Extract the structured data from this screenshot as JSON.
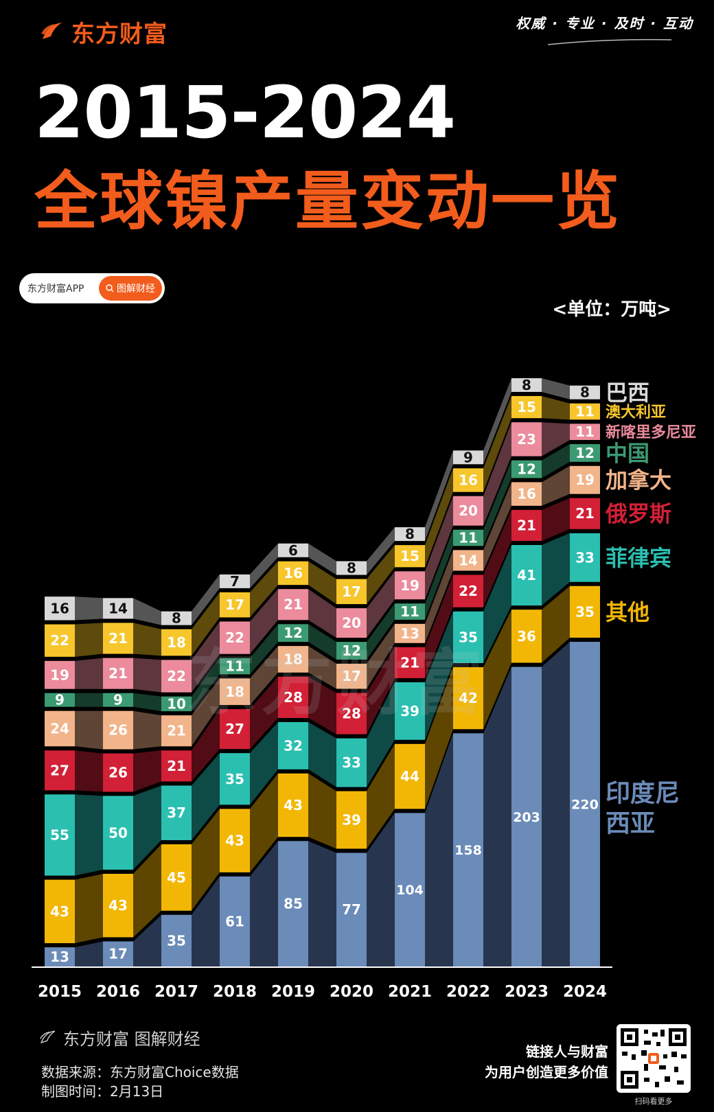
{
  "header": {
    "brand": "东方财富",
    "slogan": "权威 · 专业 · 及时 · 互动",
    "title_years": "2015-2024",
    "title_main": "全球镍产量变动一览"
  },
  "pill": {
    "left": "东方财富APP",
    "right": "图解财经"
  },
  "watermark": "东方财富",
  "footer": {
    "brand": "东方财富 图解财经",
    "source": "数据来源：东方财富Choice数据",
    "date": "制图时间：2月13日",
    "right_line1": "链接人与财富",
    "right_line2": "为用户创造更多价值",
    "qr_caption": "扫码看更多"
  },
  "chart_data": {
    "type": "bar",
    "stacked": true,
    "unit": "<单位：万吨>",
    "categories": [
      "2015",
      "2016",
      "2017",
      "2018",
      "2019",
      "2020",
      "2021",
      "2022",
      "2023",
      "2024"
    ],
    "series": [
      {
        "name": "印度尼西亚",
        "color": "#6b8bb8",
        "band": "#27354f",
        "values": [
          13,
          17,
          35,
          61,
          85,
          77,
          104,
          158,
          203,
          220
        ]
      },
      {
        "name": "其他",
        "color": "#f2b705",
        "band": "#5e4600",
        "values": [
          43,
          43,
          45,
          43,
          43,
          39,
          44,
          42,
          36,
          35
        ]
      },
      {
        "name": "菲律宾",
        "color": "#2bbfb0",
        "band": "#0e4a46",
        "values": [
          55,
          50,
          37,
          35,
          32,
          33,
          39,
          35,
          41,
          33
        ]
      },
      {
        "name": "俄罗斯",
        "color": "#d22036",
        "band": "#520c15",
        "values": [
          27,
          26,
          21,
          27,
          28,
          28,
          21,
          22,
          21,
          21
        ]
      },
      {
        "name": "加拿大",
        "color": "#f2b48a",
        "band": "#5e4535",
        "values": [
          24,
          26,
          21,
          18,
          18,
          17,
          13,
          14,
          16,
          19
        ]
      },
      {
        "name": "中国",
        "color": "#3c9a72",
        "band": "#153b2b",
        "values": [
          9,
          9,
          10,
          11,
          12,
          12,
          11,
          11,
          12,
          12
        ]
      },
      {
        "name": "新喀里多尼亚",
        "color": "#eb8b9c",
        "band": "#5e363e",
        "values": [
          19,
          21,
          22,
          22,
          21,
          20,
          19,
          20,
          23,
          11
        ]
      },
      {
        "name": "澳大利亚",
        "color": "#f7c62c",
        "band": "#5e4a0a",
        "values": [
          22,
          21,
          18,
          17,
          16,
          17,
          15,
          16,
          15,
          11
        ]
      },
      {
        "name": "巴西",
        "color": "#d9d9d9",
        "band": "#555555",
        "values": [
          16,
          14,
          8,
          7,
          6,
          8,
          8,
          9,
          8,
          8
        ]
      }
    ]
  }
}
